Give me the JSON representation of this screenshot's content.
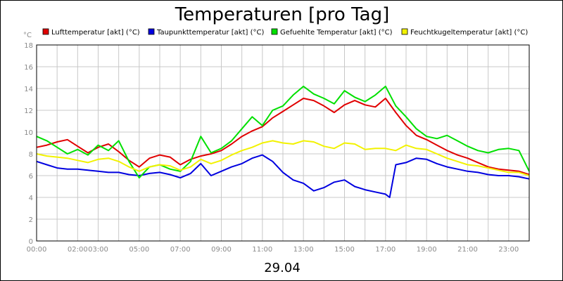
{
  "chart_data": {
    "type": "line",
    "title": "Temperaturen [pro Tag]",
    "ylabel_unit": "°C",
    "xlabel": "29.04",
    "ylim": [
      0,
      18
    ],
    "xlim": [
      0,
      24
    ],
    "yticks": [
      "0",
      "2",
      "4",
      "6",
      "8",
      "10",
      "12",
      "14",
      "16",
      "18"
    ],
    "xticks": [
      "00:00",
      "02:00",
      "03:00",
      "05:00",
      "07:00",
      "09:00",
      "11:00",
      "13:00",
      "15:00",
      "17:00",
      "19:00",
      "21:00",
      "23:00"
    ],
    "xtick_positions": [
      0,
      2,
      3,
      5,
      7,
      9,
      11,
      13,
      15,
      17,
      19,
      21,
      23
    ],
    "grid": true,
    "legend_position": "top",
    "series": [
      {
        "name": "Lufttemperatur [akt] (°C)",
        "color": "#e00000",
        "x": [
          0,
          0.5,
          1,
          1.5,
          2,
          2.5,
          3,
          3.5,
          4,
          4.5,
          5,
          5.5,
          6,
          6.5,
          7,
          7.5,
          8,
          8.5,
          9,
          9.5,
          10,
          10.5,
          11,
          11.5,
          12,
          12.5,
          13,
          13.5,
          14,
          14.5,
          15,
          15.5,
          16,
          16.5,
          17,
          17.5,
          18,
          18.5,
          19,
          19.5,
          20,
          20.5,
          21,
          21.5,
          22,
          22.5,
          23,
          23.5,
          24
        ],
        "y": [
          8.6,
          8.8,
          9.1,
          9.3,
          8.7,
          8.1,
          8.6,
          8.9,
          8.2,
          7.4,
          6.8,
          7.6,
          7.9,
          7.7,
          7.0,
          7.5,
          7.8,
          8.0,
          8.3,
          8.9,
          9.6,
          10.1,
          10.5,
          11.3,
          11.9,
          12.5,
          13.1,
          12.9,
          12.4,
          11.8,
          12.5,
          12.9,
          12.5,
          12.3,
          13.1,
          11.8,
          10.6,
          9.7,
          9.3,
          8.8,
          8.3,
          7.9,
          7.6,
          7.2,
          6.8,
          6.6,
          6.5,
          6.4,
          6.1
        ]
      },
      {
        "name": "Taupunkttemperatur [akt] (°C)",
        "color": "#0000e0",
        "x": [
          0,
          0.5,
          1,
          1.5,
          2,
          2.5,
          3,
          3.5,
          4,
          4.5,
          5,
          5.5,
          6,
          6.5,
          7,
          7.5,
          8,
          8.5,
          9,
          9.5,
          10,
          10.5,
          11,
          11.5,
          12,
          12.5,
          13,
          13.5,
          14,
          14.5,
          15,
          15.5,
          16,
          16.5,
          17,
          17.2,
          17.5,
          18,
          18.5,
          19,
          19.5,
          20,
          20.5,
          21,
          21.5,
          22,
          22.5,
          23,
          23.5,
          24
        ],
        "y": [
          7.3,
          7.0,
          6.7,
          6.6,
          6.6,
          6.5,
          6.4,
          6.3,
          6.3,
          6.1,
          6.0,
          6.2,
          6.3,
          6.1,
          5.8,
          6.2,
          7.1,
          6.0,
          6.4,
          6.8,
          7.1,
          7.6,
          7.9,
          7.3,
          6.3,
          5.6,
          5.3,
          4.6,
          4.9,
          5.4,
          5.6,
          5.0,
          4.7,
          4.5,
          4.3,
          4.0,
          7.0,
          7.2,
          7.6,
          7.5,
          7.1,
          6.8,
          6.6,
          6.4,
          6.3,
          6.1,
          6.0,
          6.0,
          5.9,
          5.7
        ]
      },
      {
        "name": "Gefuehlte Temperatur [akt] (°C)",
        "color": "#00e000",
        "x": [
          0,
          0.5,
          1,
          1.5,
          2,
          2.5,
          3,
          3.5,
          4,
          4.5,
          5,
          5.5,
          6,
          6.5,
          7,
          7.5,
          8,
          8.5,
          9,
          9.5,
          10,
          10.5,
          11,
          11.5,
          12,
          12.5,
          13,
          13.5,
          14,
          14.5,
          15,
          15.5,
          16,
          16.5,
          17,
          17.5,
          18,
          18.5,
          19,
          19.5,
          20,
          20.5,
          21,
          21.5,
          22,
          22.5,
          23,
          23.5,
          24
        ],
        "y": [
          9.6,
          9.2,
          8.6,
          8.0,
          8.4,
          7.9,
          8.8,
          8.3,
          9.2,
          7.3,
          5.8,
          6.8,
          7.0,
          6.6,
          6.4,
          7.3,
          9.6,
          8.1,
          8.5,
          9.2,
          10.3,
          11.4,
          10.6,
          12.0,
          12.4,
          13.4,
          14.2,
          13.5,
          13.1,
          12.6,
          13.8,
          13.2,
          12.8,
          13.4,
          14.2,
          12.4,
          11.4,
          10.3,
          9.6,
          9.4,
          9.7,
          9.2,
          8.7,
          8.3,
          8.1,
          8.4,
          8.5,
          8.3,
          6.4
        ]
      },
      {
        "name": "Feuchtkugeltemperatur [akt] (°C)",
        "color": "#f2f200",
        "x": [
          0,
          0.5,
          1,
          1.5,
          2,
          2.5,
          3,
          3.5,
          4,
          4.5,
          5,
          5.5,
          6,
          6.5,
          7,
          7.5,
          8,
          8.5,
          9,
          9.5,
          10,
          10.5,
          11,
          11.5,
          12,
          12.5,
          13,
          13.5,
          14,
          14.5,
          15,
          15.5,
          16,
          16.5,
          17,
          17.5,
          18,
          18.5,
          19,
          19.5,
          20,
          20.5,
          21,
          21.5,
          22,
          22.5,
          23,
          23.5,
          24
        ],
        "y": [
          8.0,
          7.8,
          7.7,
          7.6,
          7.4,
          7.2,
          7.5,
          7.6,
          7.3,
          6.8,
          6.4,
          6.8,
          7.0,
          6.9,
          6.5,
          6.8,
          7.5,
          7.1,
          7.4,
          7.9,
          8.3,
          8.6,
          9.0,
          9.2,
          9.0,
          8.9,
          9.2,
          9.1,
          8.7,
          8.5,
          9.0,
          8.9,
          8.4,
          8.5,
          8.5,
          8.3,
          8.8,
          8.5,
          8.4,
          8.0,
          7.6,
          7.3,
          7.0,
          6.9,
          6.7,
          6.5,
          6.3,
          6.3,
          6.0
        ]
      }
    ]
  }
}
